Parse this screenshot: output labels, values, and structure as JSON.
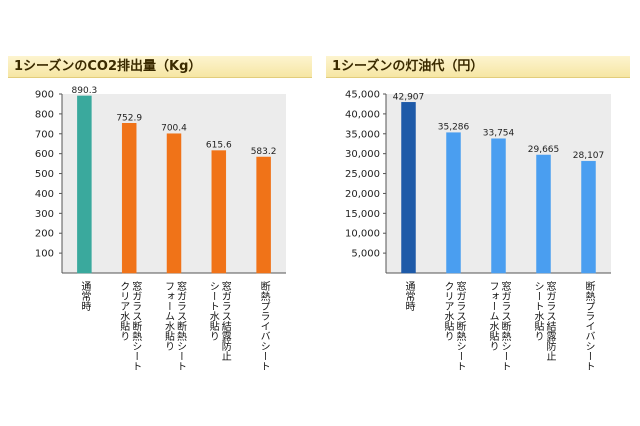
{
  "chart_data": [
    {
      "type": "bar",
      "title": "1シーズンのCO2排出量（Kg）",
      "categories": [
        "通常時",
        "窓ガラス断熱シート クリア水貼り",
        "窓ガラス断熱シート フォーム水貼り",
        "窓ガラス結露防止 シート水貼り",
        "断熱プライバシート"
      ],
      "values": [
        890.3,
        752.9,
        700.4,
        615.6,
        583.2
      ],
      "value_labels": [
        "890.3",
        "752.9",
        "700.4",
        "615.6",
        "583.2"
      ],
      "ylim": [
        0,
        900
      ],
      "yticks": [
        100,
        200,
        300,
        400,
        500,
        600,
        700,
        800,
        900
      ],
      "ytick_labels": [
        "100",
        "200",
        "300",
        "400",
        "500",
        "600",
        "700",
        "800",
        "900"
      ],
      "grid": false,
      "colors": [
        "#3aa99d",
        "#f07318",
        "#f07318",
        "#f07318",
        "#f07318"
      ],
      "xlabel": "",
      "ylabel": ""
    },
    {
      "type": "bar",
      "title": "1シーズンの灯油代（円）",
      "categories": [
        "通常時",
        "窓ガラス断熱シート クリア水貼り",
        "窓ガラス断熱シート フォーム水貼り",
        "窓ガラス結露防止 シート水貼り",
        "断熱プライバシート"
      ],
      "values": [
        42907,
        35286,
        33754,
        29665,
        28107
      ],
      "value_labels": [
        "42,907",
        "35,286",
        "33,754",
        "29,665",
        "28,107"
      ],
      "ylim": [
        0,
        45000
      ],
      "yticks": [
        5000,
        10000,
        15000,
        20000,
        25000,
        30000,
        35000,
        40000,
        45000
      ],
      "ytick_labels": [
        "5,000",
        "10,000",
        "15,000",
        "20,000",
        "25,000",
        "30,000",
        "35,000",
        "40,000",
        "45,000"
      ],
      "grid": false,
      "colors": [
        "#1e5aa8",
        "#4a9ef0",
        "#4a9ef0",
        "#4a9ef0",
        "#4a9ef0"
      ],
      "xlabel": "",
      "ylabel": ""
    }
  ]
}
